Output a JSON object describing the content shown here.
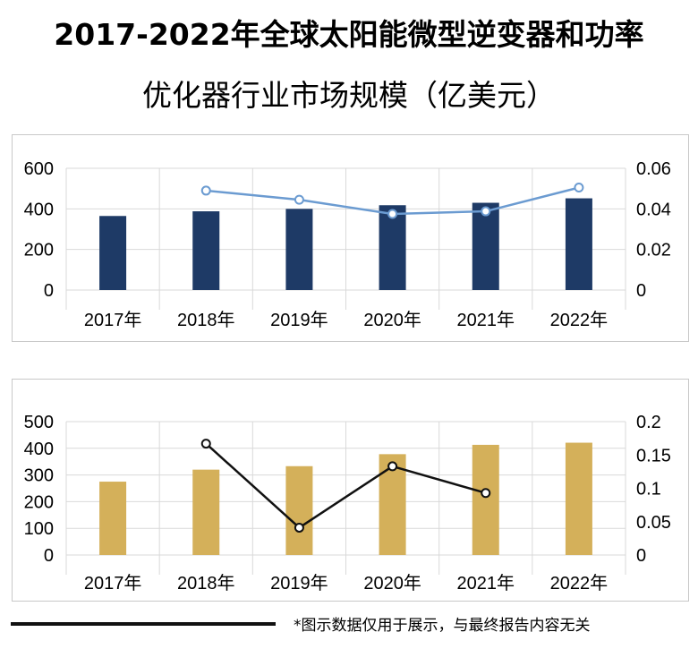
{
  "title_line1": "2017-2022年全球太阳能微型逆变器和功率",
  "title_line2": "优化器行业市场规模（亿美元）",
  "footer_note": "*图示数据仅用于展示，与最终报告内容无关",
  "colors": {
    "bar1": "#1e3a66",
    "line1": "#6b9bd1",
    "bar2": "#d4b05a",
    "line2": "#111111",
    "grid": "#d9d9d9"
  },
  "chart_data": [
    {
      "type": "bar",
      "categories": [
        "2017年",
        "2018年",
        "2019年",
        "2020年",
        "2021年",
        "2022年"
      ],
      "values": [
        365,
        388,
        400,
        418,
        430,
        452
      ],
      "ylim": [
        0,
        600
      ],
      "y_ticks": [
        "0",
        "200",
        "400",
        "600"
      ],
      "y2lim": [
        0,
        0.06
      ],
      "y2_ticks": [
        "0",
        "0.02",
        "0.04",
        "0.06"
      ],
      "line": [
        null,
        0.049,
        0.0445,
        0.0375,
        0.0388,
        0.0505
      ]
    },
    {
      "type": "bar",
      "categories": [
        "2017年",
        "2018年",
        "2019年",
        "2020年",
        "2021年",
        "2022年"
      ],
      "values": [
        275,
        320,
        333,
        378,
        413,
        421
      ],
      "ylim": [
        0,
        500
      ],
      "y_ticks": [
        "0",
        "100",
        "200",
        "300",
        "400",
        "500"
      ],
      "y2lim": [
        0,
        0.2
      ],
      "y2_ticks": [
        "0",
        "0.05",
        "0.1",
        "0.15",
        "0.2"
      ],
      "line": [
        null,
        0.167,
        0.041,
        0.133,
        0.093,
        null
      ]
    }
  ]
}
